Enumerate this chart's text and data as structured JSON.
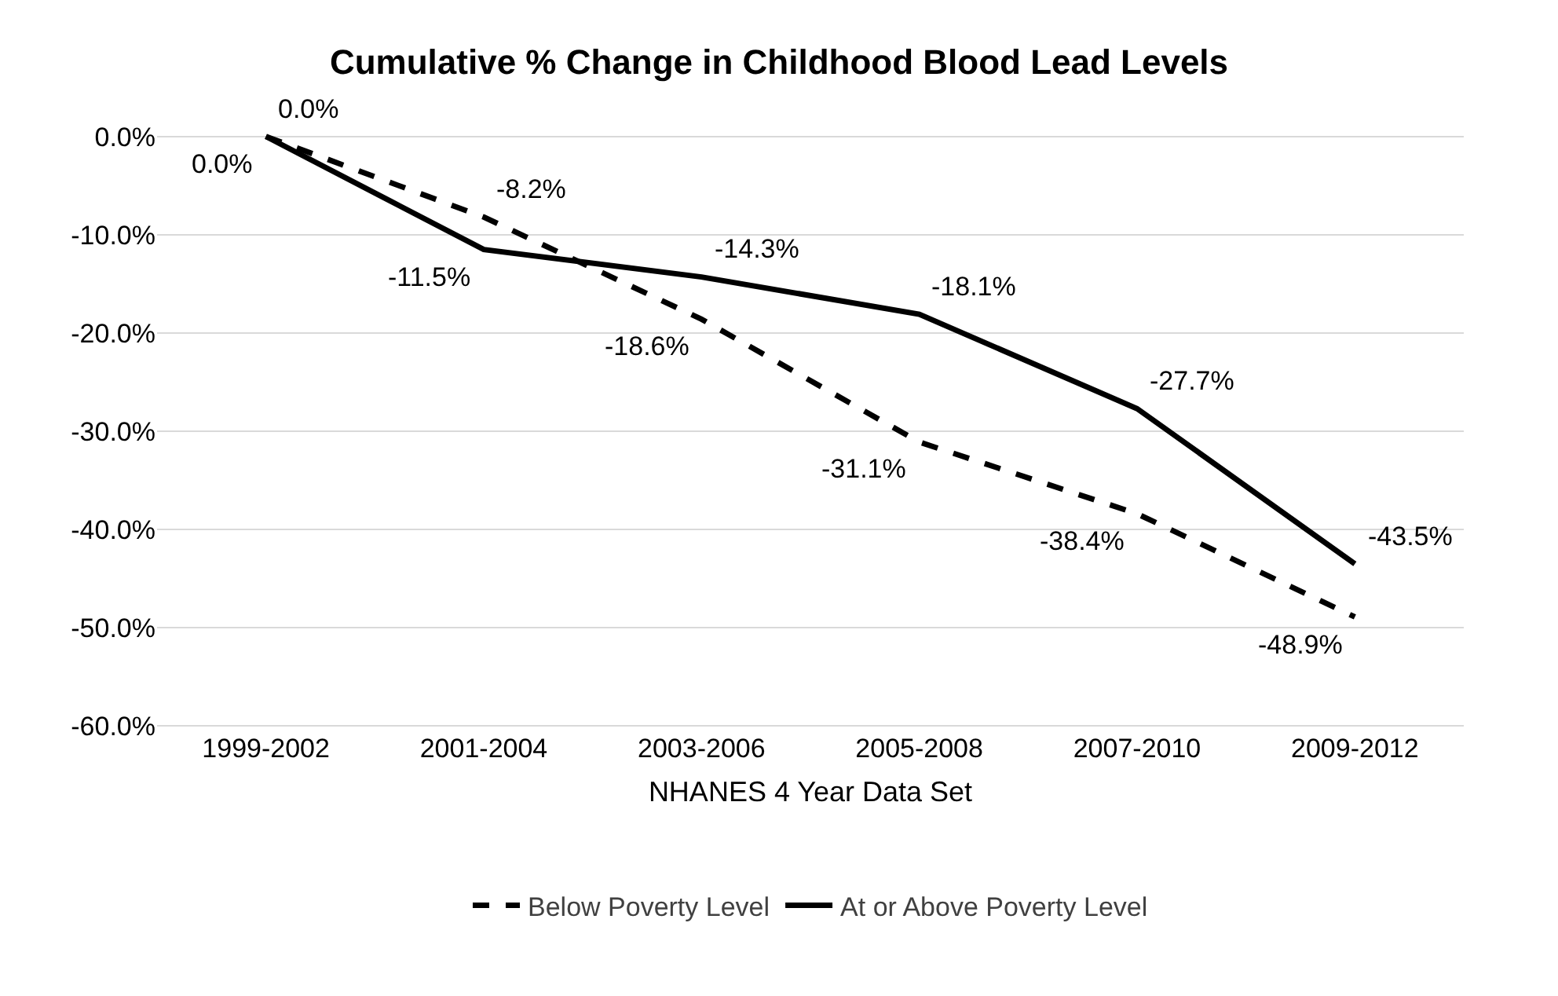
{
  "chart_data": {
    "type": "line",
    "title": "Cumulative % Change in Childhood Blood Lead Levels",
    "xlabel": "NHANES 4 Year Data Set",
    "categories": [
      "1999-2002",
      "2001-2004",
      "2003-2006",
      "2005-2008",
      "2007-2010",
      "2009-2012"
    ],
    "series": [
      {
        "name": "Below Poverty Level",
        "color": "#000000",
        "line_style": "dashed",
        "values": [
          0,
          -8.2,
          -18.6,
          -31.1,
          -38.4,
          -48.9
        ],
        "value_labels": [
          "0.0%",
          "-8.2%",
          "-18.6%",
          "-31.1%",
          "-38.4%",
          "-48.9%"
        ]
      },
      {
        "name": "At or Above Poverty Level",
        "color": "#000000",
        "line_style": "solid",
        "values": [
          0,
          -11.5,
          -14.3,
          -18.1,
          -27.7,
          -43.5
        ],
        "value_labels": [
          "0.0%",
          "-11.5%",
          "-14.3%",
          "-18.1%",
          "-27.7%",
          "-43.5%"
        ]
      }
    ],
    "ylim": [
      -60,
      0
    ],
    "yticks": [
      {
        "value": 0,
        "label": "0.0%"
      },
      {
        "value": -10,
        "label": "-10.0%"
      },
      {
        "value": -20,
        "label": "-20.0%"
      },
      {
        "value": -30,
        "label": "-30.0%"
      },
      {
        "value": -40,
        "label": "-40.0%"
      },
      {
        "value": -50,
        "label": "-50.0%"
      },
      {
        "value": -60,
        "label": "-60.0%"
      }
    ],
    "grid": "y",
    "legend": "bottom",
    "marker": "none"
  }
}
